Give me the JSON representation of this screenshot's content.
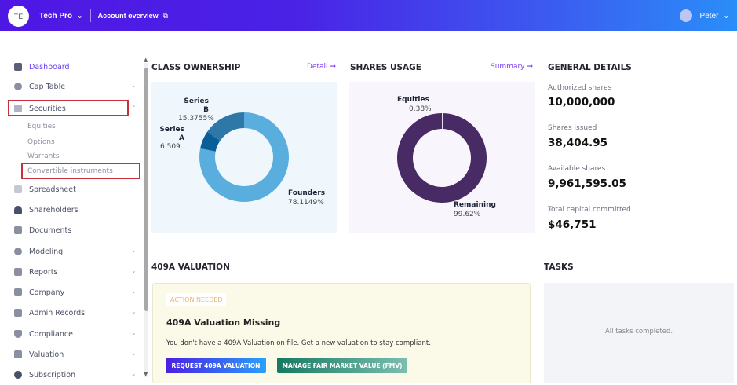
{
  "header": {
    "avatar_initials": "TE",
    "company": "Tech Pro",
    "account_overview": "Account overview",
    "user": "Peter"
  },
  "sidebar": {
    "items": [
      {
        "label": "Dashboard",
        "icon": "dashboard-icon",
        "active": true
      },
      {
        "label": "Cap Table",
        "icon": "pie-chart-icon",
        "chevron": "down"
      },
      {
        "label": "Securities",
        "icon": "clipboard-icon",
        "chevron": "up"
      },
      {
        "label": "Spreadsheet",
        "icon": "table-icon"
      },
      {
        "label": "Shareholders",
        "icon": "person-icon"
      },
      {
        "label": "Documents",
        "icon": "folder-icon"
      },
      {
        "label": "Modeling",
        "icon": "lightbulb-icon",
        "chevron": "down"
      },
      {
        "label": "Reports",
        "icon": "report-icon",
        "chevron": "down"
      },
      {
        "label": "Company",
        "icon": "building-icon",
        "chevron": "down"
      },
      {
        "label": "Admin Records",
        "icon": "records-icon",
        "chevron": "down"
      },
      {
        "label": "Compliance",
        "icon": "shield-icon",
        "chevron": "down"
      },
      {
        "label": "Valuation",
        "icon": "chart-icon",
        "chevron": "down"
      },
      {
        "label": "Subscription",
        "icon": "dollar-icon",
        "chevron": "down"
      }
    ],
    "securities_sub": [
      "Equities",
      "Options",
      "Warrants",
      "Convertible instruments"
    ]
  },
  "class_ownership": {
    "title": "CLASS OWNERSHIP",
    "link": "Detail",
    "slices": [
      {
        "name": "Founders",
        "label": "78.1149%",
        "value": 78.1149,
        "color": "#5aaedd"
      },
      {
        "name": "Series A",
        "name_l1": "Series",
        "name_l2": "A",
        "label": "6.509...",
        "value": 6.5096,
        "color": "#0b5d97"
      },
      {
        "name": "Series B",
        "name_l1": "Series",
        "name_l2": "B",
        "label": "15.3755%",
        "value": 15.3755,
        "color": "#2e78a8"
      }
    ]
  },
  "shares_usage": {
    "title": "SHARES USAGE",
    "link": "Summary",
    "slices": [
      {
        "name": "Equities",
        "label": "0.38%",
        "value": 0.38,
        "color": "#e8e4ee"
      },
      {
        "name": "Remaining",
        "label": "99.62%",
        "value": 99.62,
        "color": "#482a64"
      }
    ]
  },
  "general": {
    "title": "GENERAL DETAILS",
    "items": [
      {
        "k": "Authorized shares",
        "v": "10,000,000"
      },
      {
        "k": "Shares issued",
        "v": "38,404.95"
      },
      {
        "k": "Available shares",
        "v": "9,961,595.05"
      },
      {
        "k": "Total capital committed",
        "v": "$46,751"
      }
    ]
  },
  "valuation": {
    "title": "409A VALUATION",
    "badge": "ACTION NEEDED",
    "heading": "409A Valuation Missing",
    "text": "You don't have a 409A Valuation on file. Get a new valuation to stay compliant.",
    "btn1": "REQUEST 409A VALUATION",
    "btn2": "MANAGE FAIR MARKET VALUE (FMV)"
  },
  "tasks": {
    "title": "TASKS",
    "empty": "All tasks completed."
  }
}
